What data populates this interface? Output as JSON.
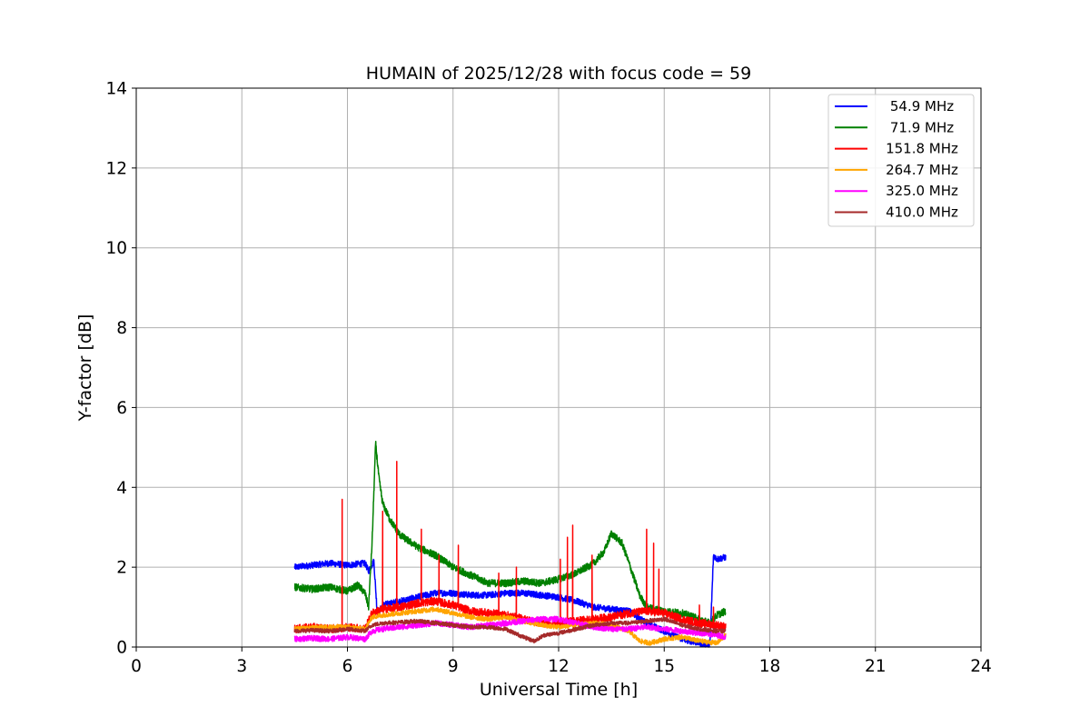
{
  "chart_data": {
    "type": "line",
    "title": "HUMAIN of 2025/12/28 with focus code = 59",
    "xlabel": "Universal Time [h]",
    "ylabel": "Y-factor [dB]",
    "xlim": [
      0,
      24
    ],
    "ylim": [
      0,
      14
    ],
    "xticks": [
      0,
      3,
      6,
      9,
      12,
      15,
      18,
      21,
      24
    ],
    "yticks": [
      0,
      2,
      4,
      6,
      8,
      10,
      12,
      14
    ],
    "grid": true,
    "legend_position": "top-right",
    "series": [
      {
        "name": " 54.9 MHz",
        "color": "#0000ff",
        "noise": 0.08,
        "x": [
          4.5,
          5.0,
          5.5,
          6.0,
          6.5,
          6.6,
          6.75,
          6.85,
          7.0,
          7.5,
          8.0,
          8.5,
          9.0,
          9.5,
          10.0,
          10.5,
          11.0,
          11.5,
          12.0,
          12.5,
          13.0,
          13.5,
          14.0,
          14.5,
          15.0,
          15.5,
          16.0,
          16.3,
          16.4,
          16.5,
          16.75
        ],
        "y": [
          2.0,
          2.05,
          2.1,
          2.05,
          2.1,
          1.9,
          2.15,
          0.8,
          1.05,
          1.15,
          1.25,
          1.35,
          1.35,
          1.3,
          1.3,
          1.35,
          1.35,
          1.3,
          1.25,
          1.15,
          1.0,
          0.95,
          0.9,
          0.6,
          0.4,
          0.2,
          0.1,
          0.05,
          2.3,
          2.2,
          2.25
        ]
      },
      {
        "name": " 71.9 MHz",
        "color": "#008000",
        "noise": 0.09,
        "x": [
          4.5,
          5.0,
          5.5,
          6.0,
          6.3,
          6.5,
          6.6,
          6.7,
          6.8,
          6.9,
          7.0,
          7.2,
          7.5,
          8.0,
          8.5,
          9.0,
          9.5,
          10.0,
          10.5,
          11.0,
          11.5,
          12.0,
          12.5,
          13.0,
          13.3,
          13.5,
          13.8,
          14.0,
          14.3,
          14.5,
          15.0,
          15.5,
          16.0,
          16.3,
          16.5,
          16.75
        ],
        "y": [
          1.5,
          1.45,
          1.5,
          1.4,
          1.55,
          1.35,
          1.0,
          2.6,
          5.1,
          4.2,
          3.6,
          3.2,
          2.8,
          2.5,
          2.3,
          2.0,
          1.8,
          1.6,
          1.6,
          1.65,
          1.6,
          1.7,
          1.85,
          2.1,
          2.4,
          2.85,
          2.6,
          2.1,
          1.3,
          1.0,
          0.9,
          0.85,
          0.7,
          0.6,
          0.8,
          0.9
        ]
      },
      {
        "name": "151.8 MHz",
        "color": "#ff0000",
        "noise": 0.1,
        "x": [
          4.5,
          5.0,
          5.5,
          6.0,
          6.5,
          6.7,
          7.0,
          7.5,
          8.0,
          8.5,
          9.0,
          9.5,
          10.0,
          10.5,
          11.0,
          11.5,
          12.0,
          12.5,
          13.0,
          13.5,
          14.0,
          14.5,
          15.0,
          15.5,
          16.0,
          16.5,
          16.75
        ],
        "y": [
          0.45,
          0.5,
          0.45,
          0.5,
          0.45,
          0.85,
          0.95,
          1.0,
          1.1,
          1.15,
          1.05,
          0.9,
          0.85,
          0.8,
          0.7,
          0.6,
          0.6,
          0.65,
          0.7,
          0.75,
          0.85,
          0.9,
          0.85,
          0.7,
          0.6,
          0.55,
          0.5
        ],
        "spikes": [
          [
            5.85,
            3.7
          ],
          [
            7.0,
            3.4
          ],
          [
            7.4,
            4.65
          ],
          [
            8.1,
            2.95
          ],
          [
            8.6,
            2.3
          ],
          [
            9.15,
            2.55
          ],
          [
            10.3,
            1.85
          ],
          [
            10.8,
            2.0
          ],
          [
            12.05,
            2.2
          ],
          [
            12.25,
            2.75
          ],
          [
            12.4,
            3.05
          ],
          [
            12.95,
            2.3
          ],
          [
            14.5,
            2.95
          ],
          [
            14.7,
            2.6
          ],
          [
            14.85,
            1.95
          ],
          [
            16.0,
            1.05
          ],
          [
            16.4,
            1.0
          ]
        ]
      },
      {
        "name": "264.7 MHz",
        "color": "#ffa500",
        "noise": 0.06,
        "x": [
          4.5,
          5.0,
          5.5,
          6.0,
          6.5,
          6.7,
          7.0,
          7.5,
          8.0,
          8.5,
          9.0,
          9.5,
          10.0,
          10.5,
          11.0,
          11.5,
          12.0,
          12.5,
          13.0,
          13.5,
          14.0,
          14.3,
          14.6,
          15.0,
          15.5,
          16.0,
          16.5,
          16.75
        ],
        "y": [
          0.45,
          0.48,
          0.5,
          0.5,
          0.45,
          0.75,
          0.8,
          0.85,
          0.9,
          0.95,
          0.85,
          0.75,
          0.7,
          0.75,
          0.65,
          0.55,
          0.5,
          0.55,
          0.6,
          0.55,
          0.4,
          0.15,
          0.1,
          0.2,
          0.25,
          0.15,
          0.1,
          0.3
        ]
      },
      {
        "name": "325.0 MHz",
        "color": "#ff00ff",
        "noise": 0.07,
        "x": [
          4.5,
          5.0,
          5.5,
          6.0,
          6.5,
          6.7,
          7.0,
          7.5,
          8.0,
          8.5,
          9.0,
          9.5,
          10.0,
          10.5,
          11.0,
          11.5,
          12.0,
          12.5,
          13.0,
          13.5,
          14.0,
          14.5,
          15.0,
          15.5,
          16.0,
          16.5,
          16.75
        ],
        "y": [
          0.2,
          0.22,
          0.2,
          0.25,
          0.2,
          0.4,
          0.45,
          0.5,
          0.55,
          0.6,
          0.55,
          0.5,
          0.55,
          0.6,
          0.65,
          0.7,
          0.7,
          0.6,
          0.5,
          0.45,
          0.45,
          0.5,
          0.45,
          0.4,
          0.35,
          0.3,
          0.25
        ]
      },
      {
        "name": "410.0 MHz",
        "color": "#a52a2a",
        "noise": 0.05,
        "x": [
          4.5,
          5.0,
          5.5,
          6.0,
          6.5,
          6.7,
          7.0,
          7.5,
          8.0,
          8.5,
          9.0,
          9.5,
          10.0,
          10.5,
          11.0,
          11.3,
          11.6,
          12.0,
          12.5,
          13.0,
          13.5,
          14.0,
          14.5,
          15.0,
          15.5,
          16.0,
          16.5,
          16.75
        ],
        "y": [
          0.4,
          0.42,
          0.4,
          0.45,
          0.4,
          0.55,
          0.6,
          0.62,
          0.65,
          0.6,
          0.55,
          0.5,
          0.5,
          0.45,
          0.25,
          0.15,
          0.3,
          0.35,
          0.45,
          0.55,
          0.6,
          0.6,
          0.65,
          0.7,
          0.55,
          0.45,
          0.4,
          0.4
        ]
      }
    ]
  }
}
